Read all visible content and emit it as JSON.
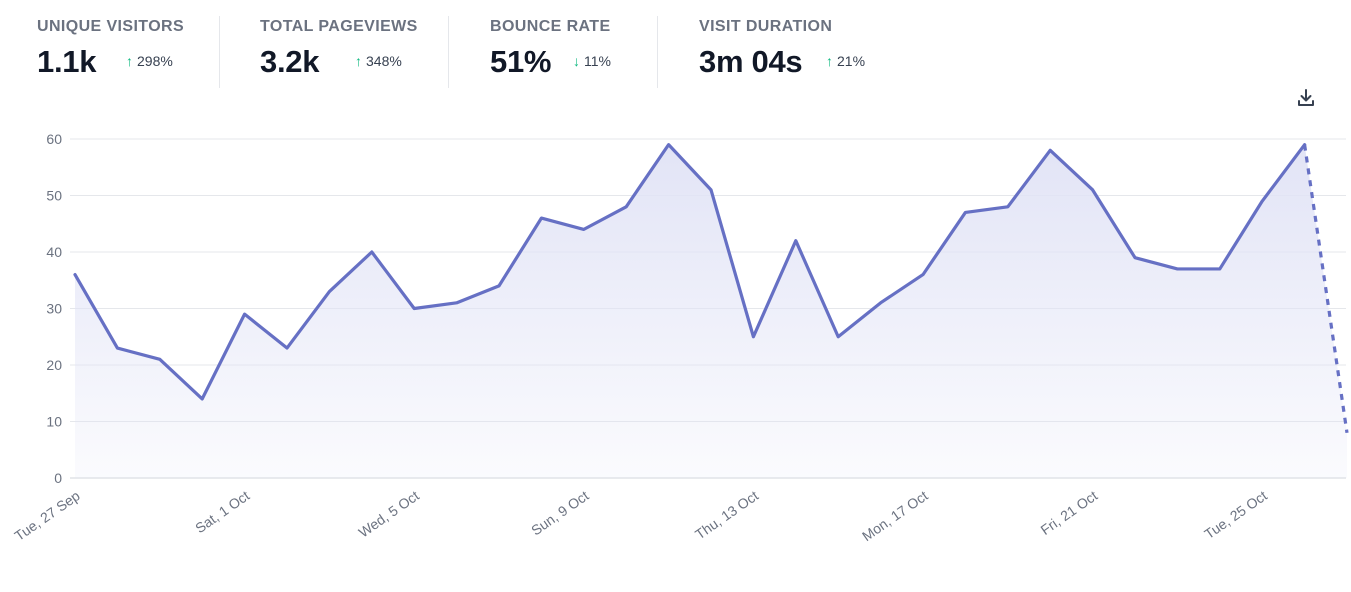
{
  "metrics": [
    {
      "label": "UNIQUE VISITORS",
      "value": "1.1k",
      "change": "298%",
      "direction": "up"
    },
    {
      "label": "TOTAL PAGEVIEWS",
      "value": "3.2k",
      "change": "348%",
      "direction": "up"
    },
    {
      "label": "BOUNCE RATE",
      "value": "51%",
      "change": "11%",
      "direction": "down"
    },
    {
      "label": "VISIT DURATION",
      "value": "3m 04s",
      "change": "21%",
      "direction": "up"
    }
  ],
  "colors": {
    "line": "#6670c4",
    "area_top": "#e2e4f6",
    "grid": "#e5e7eb",
    "change_arrow": "#10b981",
    "text_muted": "#6b7280",
    "text_dark": "#111827"
  },
  "icons": {
    "download": "download-icon",
    "trend_up": "arrow-up-icon",
    "trend_down": "arrow-down-icon"
  },
  "chart_data": {
    "type": "line",
    "title": "",
    "xlabel": "",
    "ylabel": "",
    "ylim": [
      0,
      60
    ],
    "yticks": [
      0,
      10,
      20,
      30,
      40,
      50,
      60
    ],
    "x_tick_labels": [
      "Tue, 27 Sep",
      "Sat, 1 Oct",
      "Wed, 5 Oct",
      "Sun, 9 Oct",
      "Thu, 13 Oct",
      "Mon, 17 Oct",
      "Fri, 21 Oct",
      "Tue, 25 Oct"
    ],
    "x_tick_every": 4,
    "grid": true,
    "series": [
      {
        "name": "Unique visitors",
        "values": [
          36,
          23,
          21,
          14,
          29,
          23,
          33,
          40,
          30,
          31,
          34,
          46,
          44,
          48,
          59,
          51,
          25,
          42,
          25,
          31,
          36,
          47,
          48,
          58,
          51,
          39,
          37,
          37,
          49,
          59,
          8
        ],
        "incomplete_last_point": true
      }
    ]
  }
}
